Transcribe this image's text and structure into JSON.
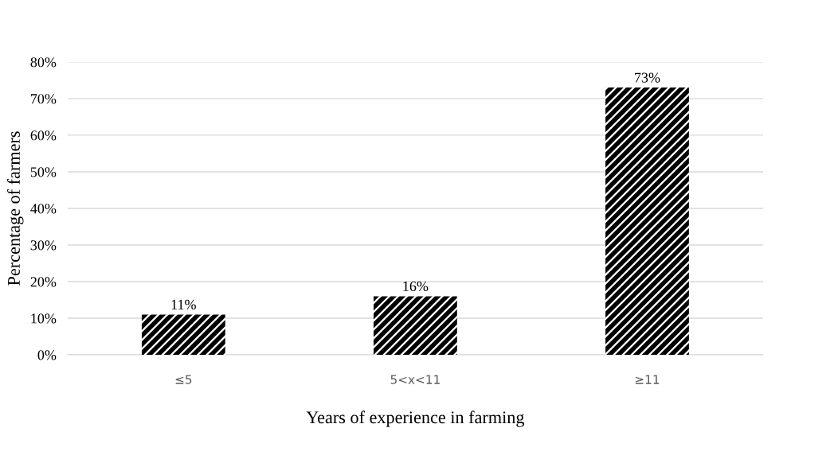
{
  "chart_data": {
    "type": "bar",
    "xlabel": "Years of experience in farming",
    "ylabel": "Percentage of farmers",
    "categories": [
      "≤5",
      "5<x<11",
      "≥11"
    ],
    "values": [
      11,
      16,
      73
    ],
    "value_labels": [
      "11%",
      "16%",
      "73%"
    ],
    "color": "#000000",
    "ylim": [
      0,
      80
    ],
    "yticks": [
      {
        "value": 0,
        "label": "0%"
      },
      {
        "value": 10,
        "label": "10%"
      },
      {
        "value": 20,
        "label": "20%"
      },
      {
        "value": 30,
        "label": "30%"
      },
      {
        "value": 40,
        "label": "40%"
      },
      {
        "value": 50,
        "label": "50%"
      },
      {
        "value": 60,
        "label": "60%"
      },
      {
        "value": 70,
        "label": "70%"
      },
      {
        "value": 80,
        "label": "80%"
      }
    ],
    "grid": "y",
    "legend": false
  }
}
